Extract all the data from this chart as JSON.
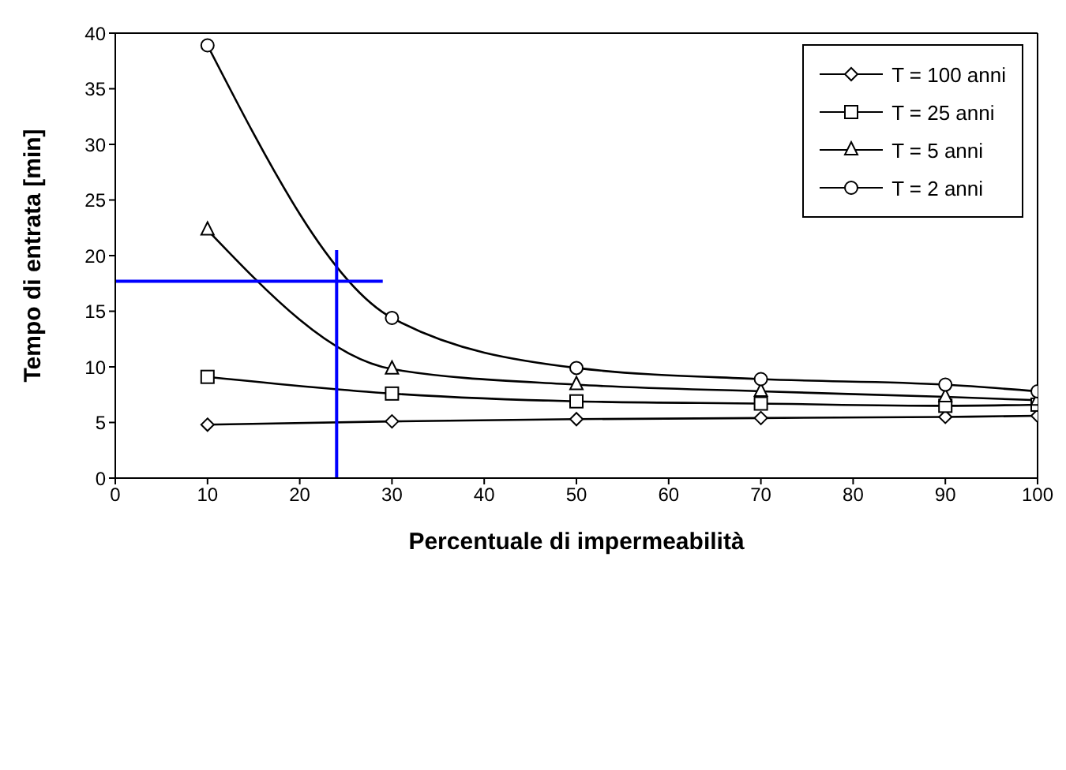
{
  "chart_data": {
    "type": "line",
    "xlabel": "Percentuale di impermeabilità",
    "ylabel": "Tempo di entrata [min]",
    "xlim": [
      0,
      100
    ],
    "xticks": [
      0,
      10,
      20,
      30,
      40,
      50,
      60,
      70,
      80,
      90,
      100
    ],
    "ylim": [
      0,
      40
    ],
    "yticks": [
      0,
      5,
      10,
      15,
      20,
      25,
      30,
      35,
      40
    ],
    "grid": false,
    "legend": "top right",
    "x": [
      10,
      30,
      50,
      70,
      90,
      100
    ],
    "series": [
      {
        "name": "T = 100 anni",
        "color": "#000000",
        "marker": "diamond",
        "values": [
          4.8,
          5.1,
          5.3,
          5.4,
          5.5,
          5.6
        ]
      },
      {
        "name": "T = 25 anni",
        "color": "#000000",
        "marker": "square",
        "values": [
          9.1,
          7.6,
          6.9,
          6.7,
          6.5,
          6.6
        ]
      },
      {
        "name": "T = 5 anni",
        "color": "#000000",
        "marker": "triangle",
        "values": [
          22.3,
          9.8,
          8.4,
          7.8,
          7.3,
          7.0
        ]
      },
      {
        "name": "T = 2 anni",
        "color": "#000000",
        "marker": "circle",
        "values": [
          38.9,
          14.4,
          9.9,
          8.9,
          8.4,
          7.8
        ]
      },
      {
        "color": "#0000ff",
        "marker": "none",
        "x": [
          24,
          24
        ],
        "values": [
          0,
          20.5
        ]
      },
      {
        "color": "#0000ff",
        "marker": "none",
        "x": [
          0,
          29
        ],
        "values": [
          17.7,
          17.7
        ]
      }
    ]
  }
}
